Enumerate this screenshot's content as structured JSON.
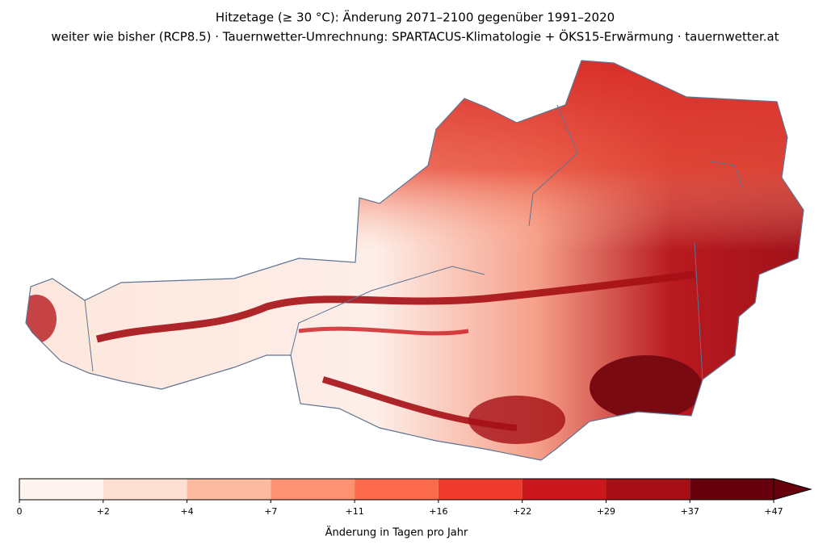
{
  "title": "Hitzetage (≥ 30 °C): Änderung 2071–2100 gegenüber 1991–2020",
  "subtitle": "weiter wie bisher (RCP8.5) · Tauernwetter-Umrechnung: SPARTACUS-Klimatologie + ÖKS15-Erwärmung · tauernwetter.at",
  "colorbar": {
    "label": "Änderung in Tagen pro Jahr",
    "ticks": [
      0,
      {
        "value": 2,
        "label": "+2"
      },
      {
        "value": 4,
        "label": "+4"
      },
      {
        "value": 7,
        "label": "+7"
      },
      {
        "value": 11,
        "label": "+11"
      },
      {
        "value": 16,
        "label": "+16"
      },
      {
        "value": 22,
        "label": "+22"
      },
      {
        "value": 29,
        "label": "+29"
      },
      {
        "value": 37,
        "label": "+37"
      },
      {
        "value": 47,
        "label": "+47"
      }
    ],
    "colors": [
      "#fff5f0",
      "#fee0d2",
      "#fcbba1",
      "#fc9272",
      "#fb6a4a",
      "#ef3b2c",
      "#cb181d",
      "#a50f15",
      "#67000d"
    ],
    "extend_color": "#67000d"
  }
}
